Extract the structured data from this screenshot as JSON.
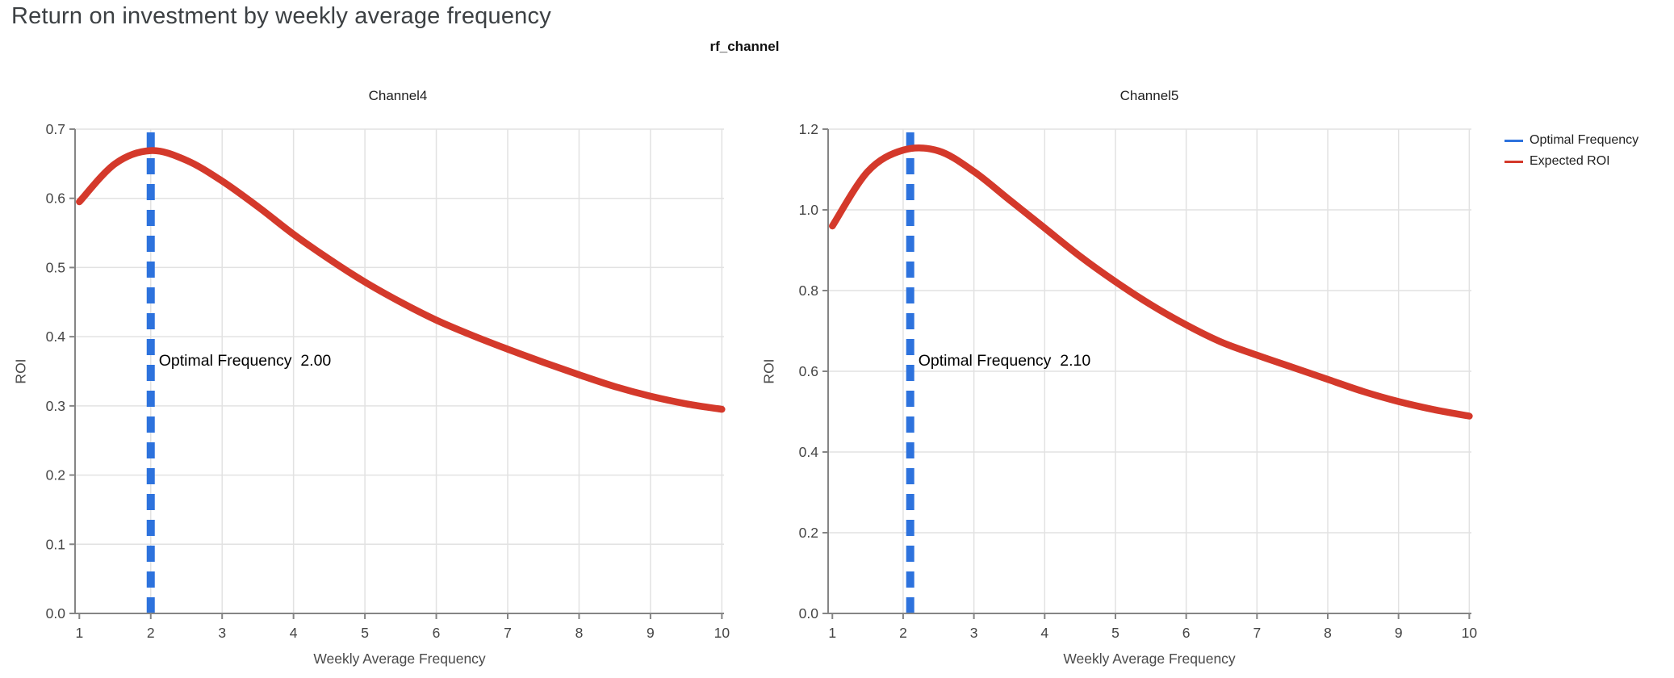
{
  "page": {
    "title": "Return on investment by weekly average frequency",
    "subtitle": "rf_channel"
  },
  "legend": {
    "items": [
      {
        "label": "Optimal Frequency",
        "color": "#2d72dd"
      },
      {
        "label": "Expected ROI",
        "color": "#d4392b"
      }
    ]
  },
  "chart_data": [
    {
      "type": "line",
      "title": "Channel4",
      "xlabel": "Weekly Average Frequency",
      "ylabel": "ROI",
      "xlim": [
        0.94,
        10.03
      ],
      "ylim": [
        0,
        0.7
      ],
      "xticks": [
        1,
        2,
        3,
        4,
        5,
        6,
        7,
        8,
        9,
        10
      ],
      "ytick_step": 0.1,
      "grid": true,
      "legend_position": "top-right-outside",
      "optimal_frequency": 2.0,
      "annotation": {
        "label": "Optimal Frequency",
        "value": "2.00"
      },
      "series": [
        {
          "name": "Expected ROI",
          "color": "#d4392b",
          "x": [
            1,
            1.5,
            2,
            2.5,
            3,
            3.5,
            4,
            4.5,
            5,
            5.5,
            6,
            6.5,
            7,
            7.5,
            8,
            8.5,
            9,
            9.5,
            10
          ],
          "y": [
            0.595,
            0.65,
            0.669,
            0.655,
            0.625,
            0.588,
            0.548,
            0.512,
            0.479,
            0.45,
            0.424,
            0.402,
            0.382,
            0.363,
            0.345,
            0.328,
            0.314,
            0.303,
            0.295
          ]
        },
        {
          "name": "Optimal Frequency",
          "color": "#2d72dd",
          "style": "dashed-vertical-line",
          "x": 2.0
        }
      ]
    },
    {
      "type": "line",
      "title": "Channel5",
      "xlabel": "Weekly Average Frequency",
      "ylabel": "ROI",
      "xlim": [
        0.94,
        10.03
      ],
      "ylim": [
        0,
        1.2
      ],
      "xticks": [
        1,
        2,
        3,
        4,
        5,
        6,
        7,
        8,
        9,
        10
      ],
      "ytick_step": 0.2,
      "grid": true,
      "legend_position": "top-right-outside",
      "optimal_frequency": 2.1,
      "annotation": {
        "label": "Optimal Frequency",
        "value": "2.10"
      },
      "series": [
        {
          "name": "Expected ROI",
          "color": "#d4392b",
          "x": [
            1,
            1.5,
            2,
            2.5,
            3,
            3.5,
            4,
            4.5,
            5,
            5.5,
            6,
            6.5,
            7,
            7.5,
            8,
            8.5,
            9,
            9.5,
            10
          ],
          "y": [
            0.96,
            1.095,
            1.148,
            1.146,
            1.095,
            1.025,
            0.955,
            0.885,
            0.822,
            0.765,
            0.715,
            0.672,
            0.64,
            0.61,
            0.58,
            0.55,
            0.525,
            0.505,
            0.489
          ]
        },
        {
          "name": "Optimal Frequency",
          "color": "#2d72dd",
          "style": "dashed-vertical-line",
          "x": 2.1
        }
      ]
    }
  ]
}
